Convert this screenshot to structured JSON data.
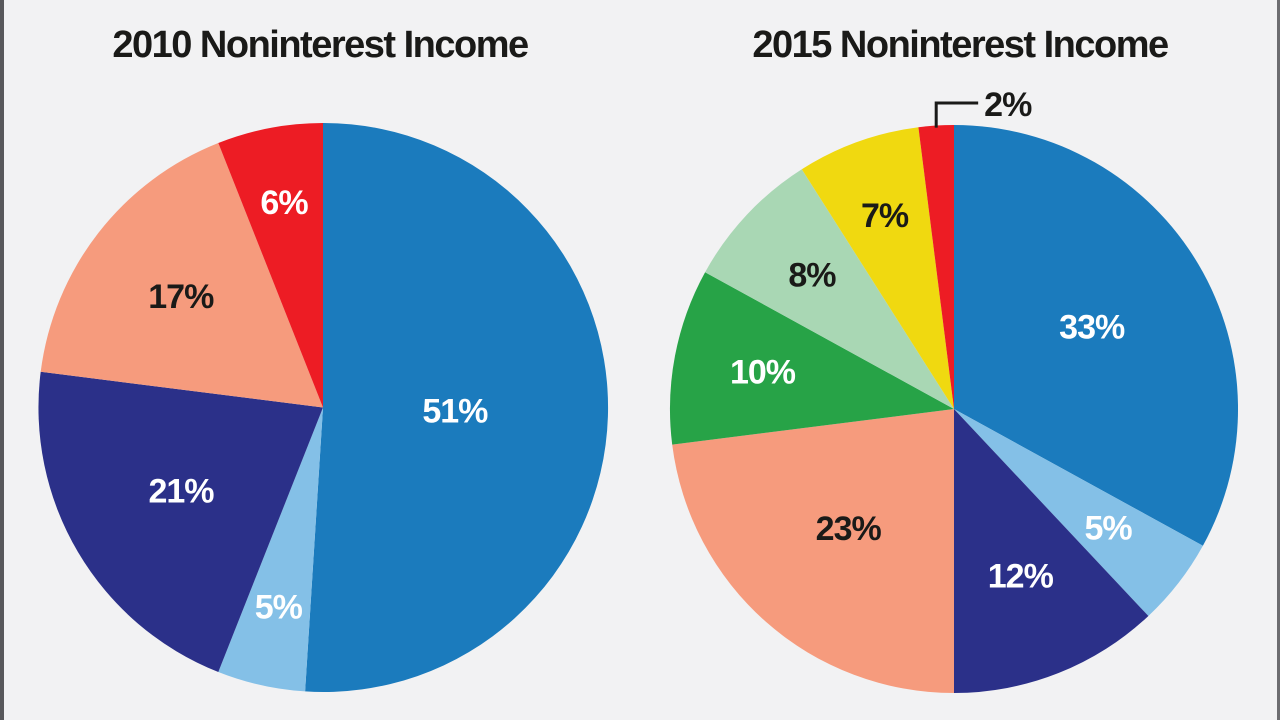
{
  "page": {
    "background_color": "#f2f2f3",
    "left_border_color": "#58585b",
    "right_border_color": "#6d6d70",
    "text_color": "#1a1a18"
  },
  "chart_data": [
    {
      "type": "pie",
      "title": "2010 Noninterest Income",
      "start_angle_deg": 0,
      "direction": "clockwise",
      "legend": "none",
      "slices": [
        {
          "label": "51%",
          "value": 51,
          "color": "#1b7bbd",
          "label_color": "#ffffff",
          "label_r": 132
        },
        {
          "label": "5%",
          "value": 5,
          "color": "#84c0e7",
          "label_color": "#ffffff",
          "label_r": 205
        },
        {
          "label": "21%",
          "value": 21,
          "color": "#2b3089",
          "label_color": "#ffffff",
          "label_r": 165
        },
        {
          "label": "17%",
          "value": 17,
          "color": "#f69b7d",
          "label_color": "#1a1a18",
          "label_r": 180
        },
        {
          "label": "6%",
          "value": 6,
          "color": "#ed1c24",
          "label_color": "#ffffff",
          "label_r": 208
        }
      ]
    },
    {
      "type": "pie",
      "title": "2015 Noninterest Income",
      "start_angle_deg": 0,
      "direction": "clockwise",
      "legend": "none",
      "slices": [
        {
          "label": "33%",
          "value": 33,
          "color": "#1b7bbd",
          "label_color": "#ffffff",
          "label_r": 160
        },
        {
          "label": "5%",
          "value": 5,
          "color": "#84c0e7",
          "label_color": "#ffffff",
          "label_r": 195
        },
        {
          "label": "12%",
          "value": 12,
          "color": "#2b3089",
          "label_color": "#ffffff",
          "label_r": 180
        },
        {
          "label": "23%",
          "value": 23,
          "color": "#f69b7d",
          "label_color": "#1a1a18",
          "label_r": 160
        },
        {
          "label": "10%",
          "value": 10,
          "color": "#27a347",
          "label_color": "#ffffff",
          "label_r": 195
        },
        {
          "label": "8%",
          "value": 8,
          "color": "#a9d7b4",
          "label_color": "#1a1a18",
          "label_r": 195
        },
        {
          "label": "7%",
          "value": 7,
          "color": "#f0d910",
          "label_color": "#1a1a18",
          "label_r": 205
        },
        {
          "label": "2%",
          "value": 2,
          "color": "#ed1c24",
          "label_color": "#1a1a18",
          "label_outside": true
        }
      ]
    }
  ]
}
